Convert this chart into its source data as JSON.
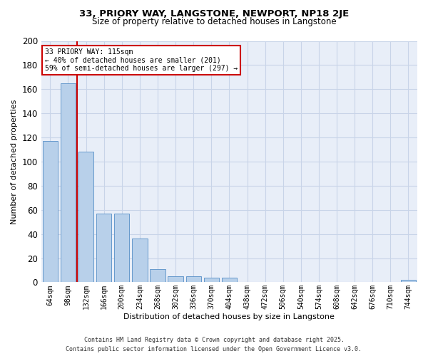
{
  "title_line1": "33, PRIORY WAY, LANGSTONE, NEWPORT, NP18 2JE",
  "title_line2": "Size of property relative to detached houses in Langstone",
  "xlabel": "Distribution of detached houses by size in Langstone",
  "ylabel": "Number of detached properties",
  "categories": [
    "64sqm",
    "98sqm",
    "132sqm",
    "166sqm",
    "200sqm",
    "234sqm",
    "268sqm",
    "302sqm",
    "336sqm",
    "370sqm",
    "404sqm",
    "438sqm",
    "472sqm",
    "506sqm",
    "540sqm",
    "574sqm",
    "608sqm",
    "642sqm",
    "676sqm",
    "710sqm",
    "744sqm"
  ],
  "values": [
    117,
    165,
    108,
    57,
    57,
    36,
    11,
    5,
    5,
    4,
    4,
    0,
    0,
    0,
    0,
    0,
    0,
    0,
    0,
    0,
    2
  ],
  "bar_color": "#b8d0ea",
  "bar_edge_color": "#6699cc",
  "grid_color": "#c8d4e8",
  "background_color": "#e8eef8",
  "vline_x": 1.5,
  "vline_color": "#cc0000",
  "annotation_line1": "33 PRIORY WAY: 115sqm",
  "annotation_line2": "← 40% of detached houses are smaller (201)",
  "annotation_line3": "59% of semi-detached houses are larger (297) →",
  "annotation_box_color": "#ffffff",
  "annotation_box_edge": "#cc0000",
  "ylim": [
    0,
    200
  ],
  "yticks": [
    0,
    20,
    40,
    60,
    80,
    100,
    120,
    140,
    160,
    180,
    200
  ],
  "footer_line1": "Contains HM Land Registry data © Crown copyright and database right 2025.",
  "footer_line2": "Contains public sector information licensed under the Open Government Licence v3.0."
}
